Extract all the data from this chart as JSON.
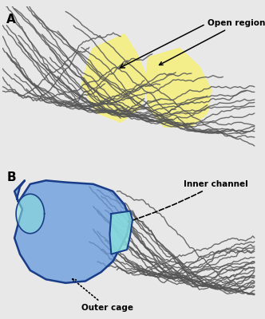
{
  "fig_width": 3.32,
  "fig_height": 4.0,
  "dpi": 100,
  "bg_color": "#e8e8e8",
  "panel_bg": "#efefef",
  "panel_A": {
    "label": "A",
    "yellow_color": "#f5f07a",
    "yellow_alpha": 0.85,
    "wire_color": "#555555",
    "wire_lw": 1.0,
    "annotation_text": "Open regions",
    "annotation_fontsize": 7.5
  },
  "panel_B": {
    "label": "B",
    "blue_fill": "#6699dd",
    "blue_edge": "#1a3d8a",
    "blue_alpha": 0.75,
    "cyan_fill": "#88dddd",
    "cyan_edge": "#1a3d8a",
    "cyan_alpha": 0.85,
    "wire_color": "#555555",
    "wire_lw": 1.0,
    "annotation_inner": "Inner channel",
    "annotation_outer": "Outer cage",
    "annotation_fontsize": 7.5
  }
}
